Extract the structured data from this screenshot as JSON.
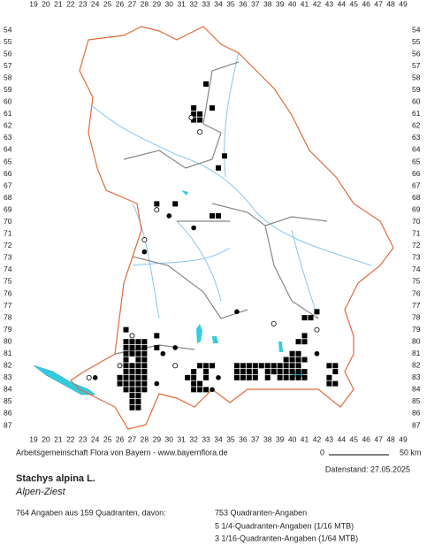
{
  "grid": {
    "columns": [
      19,
      20,
      21,
      22,
      23,
      24,
      25,
      26,
      27,
      28,
      29,
      30,
      31,
      32,
      33,
      34,
      35,
      36,
      37,
      38,
      39,
      40,
      41,
      42,
      43,
      44,
      45,
      46,
      47,
      48,
      49
    ],
    "rows": [
      54,
      55,
      56,
      57,
      58,
      59,
      60,
      61,
      62,
      63,
      64,
      65,
      66,
      67,
      68,
      69,
      70,
      71,
      72,
      73,
      74,
      75,
      76,
      77,
      78,
      79,
      80,
      81,
      82,
      83,
      84,
      85,
      86,
      87
    ]
  },
  "credit": "Arbeitsgemeinschaft Flora von Bayern - www.bayernflora.de",
  "scale": {
    "start": "0",
    "end": "50 km"
  },
  "date": "Datenstand: 27.05.2025",
  "species": {
    "name": "Stachys alpina L.",
    "common_name": "Alpen-Ziest"
  },
  "summary": {
    "total": "764 Angaben aus 159 Quadranten, davon:",
    "breakdown": [
      "753 Quadranten-Angaben",
      "5 1/4-Quadranten-Angaben (1/16 MTB)",
      "3 1/16-Quadranten-Angaben (1/64 MTB)"
    ]
  },
  "records": {
    "squares": [
      [
        33,
        58.5
      ],
      [
        32,
        60.5
      ],
      [
        32,
        61
      ],
      [
        32.5,
        61
      ],
      [
        33.5,
        60.5
      ],
      [
        32,
        61.5
      ],
      [
        32.5,
        61.5
      ],
      [
        34.5,
        64.5
      ],
      [
        34,
        65.5
      ],
      [
        29,
        68.5
      ],
      [
        30.5,
        68.5
      ],
      [
        33.5,
        69.5
      ],
      [
        34,
        69.5
      ],
      [
        26.5,
        79
      ],
      [
        26.5,
        80
      ],
      [
        27,
        80
      ],
      [
        27.5,
        80
      ],
      [
        28,
        80
      ],
      [
        29,
        79.5
      ],
      [
        26.5,
        80.5
      ],
      [
        27,
        80.5
      ],
      [
        27.5,
        80.5
      ],
      [
        28,
        80.5
      ],
      [
        29,
        80.5
      ],
      [
        26.5,
        81
      ],
      [
        27,
        81
      ],
      [
        27.5,
        81
      ],
      [
        28,
        81
      ],
      [
        26.5,
        81.5
      ],
      [
        27.5,
        81.5
      ],
      [
        28,
        81.5
      ],
      [
        26.5,
        82
      ],
      [
        27,
        82
      ],
      [
        27.5,
        82
      ],
      [
        28,
        82
      ],
      [
        26.5,
        82.5
      ],
      [
        27,
        82.5
      ],
      [
        27.5,
        82.5
      ],
      [
        28,
        82.5
      ],
      [
        26,
        83
      ],
      [
        26.5,
        83
      ],
      [
        27,
        83
      ],
      [
        27.5,
        83
      ],
      [
        28,
        83
      ],
      [
        26,
        83.5
      ],
      [
        26.5,
        83.5
      ],
      [
        27,
        83.5
      ],
      [
        27.5,
        83.5
      ],
      [
        28,
        83.5
      ],
      [
        26.5,
        84
      ],
      [
        27,
        84
      ],
      [
        27.5,
        84
      ],
      [
        28,
        84
      ],
      [
        27,
        84.5
      ],
      [
        27.5,
        84.5
      ],
      [
        27,
        85
      ],
      [
        27.5,
        85
      ],
      [
        27,
        85.5
      ],
      [
        27.5,
        85.5
      ],
      [
        32.5,
        82
      ],
      [
        33,
        82
      ],
      [
        33.5,
        82
      ],
      [
        35.5,
        82
      ],
      [
        36,
        82
      ],
      [
        36.5,
        82
      ],
      [
        37,
        82
      ],
      [
        37.5,
        82
      ],
      [
        38,
        82
      ],
      [
        38.5,
        82
      ],
      [
        39,
        82
      ],
      [
        39.5,
        82
      ],
      [
        40,
        82
      ],
      [
        40.5,
        82
      ],
      [
        43,
        82
      ],
      [
        43.5,
        82
      ],
      [
        32,
        82.5
      ],
      [
        33,
        82.5
      ],
      [
        35.5,
        82.5
      ],
      [
        36,
        82.5
      ],
      [
        36.5,
        82.5
      ],
      [
        37,
        82.5
      ],
      [
        38,
        82.5
      ],
      [
        38.5,
        82.5
      ],
      [
        39,
        82.5
      ],
      [
        39.5,
        82.5
      ],
      [
        40,
        82.5
      ],
      [
        40.5,
        82.5
      ],
      [
        41,
        82.5
      ],
      [
        43.5,
        82.5
      ],
      [
        31.5,
        83
      ],
      [
        32,
        83
      ],
      [
        33,
        83
      ],
      [
        35.5,
        83
      ],
      [
        36,
        83
      ],
      [
        36.5,
        83
      ],
      [
        37,
        83
      ],
      [
        38,
        83
      ],
      [
        39,
        83
      ],
      [
        39.5,
        83
      ],
      [
        40,
        83
      ],
      [
        40.5,
        83
      ],
      [
        41,
        83
      ],
      [
        43,
        83
      ],
      [
        32,
        83.5
      ],
      [
        32.5,
        83.5
      ],
      [
        43,
        83.5
      ],
      [
        43.5,
        83.5
      ],
      [
        32,
        84
      ],
      [
        32.5,
        84
      ],
      [
        33,
        84
      ],
      [
        39.5,
        81.5
      ],
      [
        40,
        81.5
      ],
      [
        40.5,
        81.5
      ],
      [
        41,
        81.5
      ],
      [
        40,
        81
      ],
      [
        40.5,
        81
      ],
      [
        40.5,
        80
      ],
      [
        41,
        80
      ],
      [
        41,
        79.5
      ],
      [
        41,
        78
      ],
      [
        41.5,
        78
      ],
      [
        42,
        77.5
      ]
    ],
    "dots": [
      [
        35.5,
        77.5
      ],
      [
        30.5,
        80.5
      ],
      [
        29.5,
        81
      ],
      [
        24,
        83
      ],
      [
        29,
        83.5
      ],
      [
        34,
        83
      ],
      [
        33.5,
        84
      ],
      [
        28,
        72.5
      ],
      [
        30,
        69.5
      ],
      [
        32,
        70.5
      ],
      [
        42,
        81
      ]
    ],
    "circles": [
      [
        27,
        79.5
      ],
      [
        29,
        69
      ],
      [
        28,
        71.5
      ],
      [
        42,
        79
      ],
      [
        38.5,
        78.5
      ],
      [
        30.5,
        82
      ],
      [
        32.5,
        62.5
      ],
      [
        31.8,
        61.3
      ],
      [
        26,
        82
      ],
      [
        23.5,
        83
      ]
    ]
  }
}
